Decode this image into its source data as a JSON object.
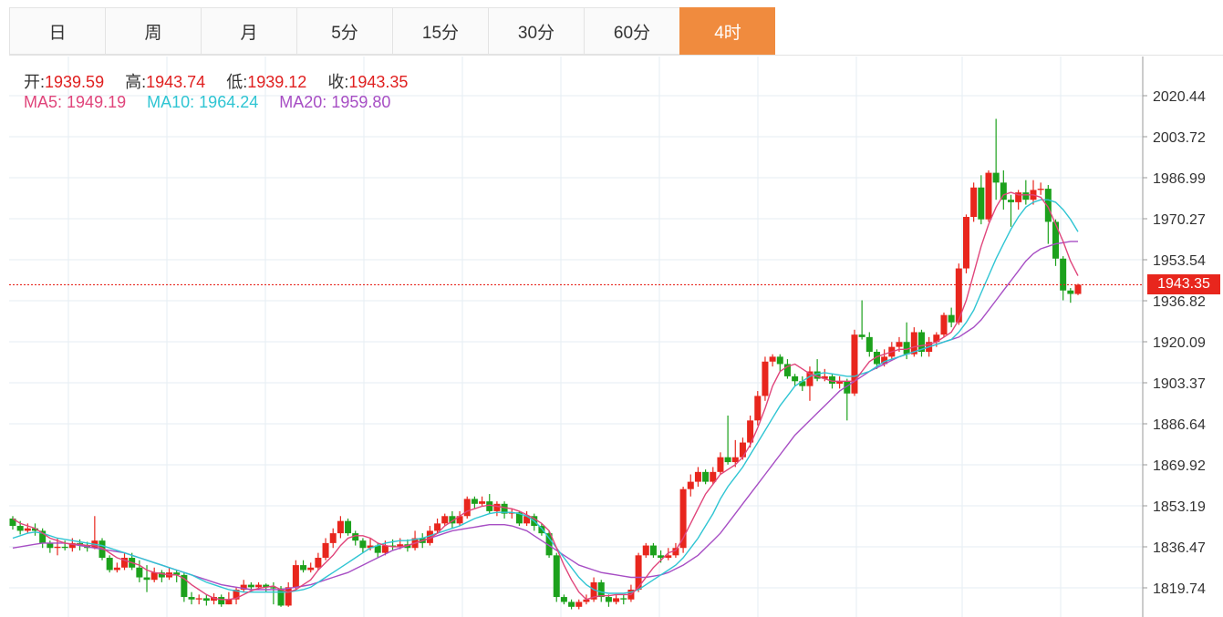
{
  "tabs": [
    {
      "label": "日",
      "active": false
    },
    {
      "label": "周",
      "active": false
    },
    {
      "label": "月",
      "active": false
    },
    {
      "label": "5分",
      "active": false
    },
    {
      "label": "15分",
      "active": false
    },
    {
      "label": "30分",
      "active": false
    },
    {
      "label": "60分",
      "active": false
    },
    {
      "label": "4时",
      "active": true
    }
  ],
  "ohlc": {
    "open_label": "开:",
    "open": "1939.59",
    "high_label": "高:",
    "high": "1943.74",
    "low_label": "低:",
    "low": "1939.12",
    "close_label": "收:",
    "close": "1943.35"
  },
  "ma": {
    "ma5_label": "MA5:",
    "ma5": "1949.19",
    "ma10_label": "MA10:",
    "ma10": "1964.24",
    "ma20_label": "MA20:",
    "ma20": "1959.80"
  },
  "current_price": "1943.35",
  "colors": {
    "up": "#e8261d",
    "down": "#1ca11c",
    "ma5": "#e0457b",
    "ma10": "#2fc5d3",
    "ma20": "#a74ec4",
    "active_tab": "#f08b3e"
  },
  "chart_data": {
    "type": "candlestick",
    "yticks": [
      "2020.44",
      "2003.72",
      "1986.99",
      "1970.27",
      "1953.54",
      "1936.82",
      "1920.09",
      "1903.37",
      "1886.64",
      "1869.92",
      "1853.19",
      "1836.47",
      "1819.74"
    ],
    "ylim": [
      1813.0,
      2035.0
    ],
    "last_price": 1943.35,
    "candles": [
      [
        1848.0,
        1845.0,
        1849.0,
        1843.5
      ],
      [
        1845.0,
        1843.0,
        1847.0,
        1841.5
      ],
      [
        1843.0,
        1844.0,
        1846.0,
        1842.0
      ],
      [
        1844.0,
        1843.0,
        1846.0,
        1841.0
      ],
      [
        1843.0,
        1838.0,
        1844.0,
        1836.0
      ],
      [
        1838.0,
        1836.0,
        1839.0,
        1834.0
      ],
      [
        1836.0,
        1836.5,
        1840.0,
        1833.0
      ],
      [
        1836.5,
        1836.0,
        1839.0,
        1835.0
      ],
      [
        1836.0,
        1838.0,
        1840.0,
        1834.5
      ],
      [
        1838.0,
        1837.0,
        1839.5,
        1835.0
      ],
      [
        1837.0,
        1836.0,
        1838.5,
        1834.5
      ],
      [
        1836.0,
        1839.0,
        1849.0,
        1835.5
      ],
      [
        1839.0,
        1832.0,
        1840.0,
        1831.0
      ],
      [
        1832.0,
        1827.0,
        1833.0,
        1826.0
      ],
      [
        1827.0,
        1828.0,
        1830.0,
        1826.0
      ],
      [
        1828.0,
        1832.0,
        1834.0,
        1827.0
      ],
      [
        1832.0,
        1828.0,
        1834.0,
        1827.0
      ],
      [
        1828.0,
        1824.0,
        1831.0,
        1822.0
      ],
      [
        1824.0,
        1823.0,
        1829.0,
        1818.0
      ],
      [
        1823.0,
        1826.0,
        1828.0,
        1822.0
      ],
      [
        1826.0,
        1824.0,
        1827.0,
        1822.0
      ],
      [
        1824.0,
        1826.0,
        1828.0,
        1823.0
      ],
      [
        1826.0,
        1825.0,
        1827.0,
        1822.0
      ],
      [
        1825.0,
        1816.0,
        1826.0,
        1814.0
      ],
      [
        1816.0,
        1815.0,
        1818.0,
        1813.0
      ],
      [
        1815.0,
        1815.5,
        1817.0,
        1813.0
      ],
      [
        1815.5,
        1814.5,
        1817.0,
        1812.5
      ],
      [
        1814.5,
        1816.0,
        1817.5,
        1813.0
      ],
      [
        1816.0,
        1813.0,
        1817.0,
        1812.0
      ],
      [
        1813.0,
        1815.0,
        1818.0,
        1813.0
      ],
      [
        1815.0,
        1819.0,
        1820.0,
        1813.0
      ],
      [
        1819.0,
        1821.0,
        1823.0,
        1818.0
      ],
      [
        1821.0,
        1820.0,
        1822.0,
        1818.0
      ],
      [
        1820.0,
        1821.0,
        1822.0,
        1819.0
      ],
      [
        1821.0,
        1820.0,
        1821.5,
        1818.0
      ],
      [
        1820.0,
        1819.5,
        1822.0,
        1813.0
      ],
      [
        1819.5,
        1812.5,
        1820.5,
        1812.0
      ],
      [
        1812.5,
        1820.0,
        1822.0,
        1812.0
      ],
      [
        1820.0,
        1829.0,
        1831.0,
        1819.0
      ],
      [
        1829.0,
        1827.0,
        1831.0,
        1826.0
      ],
      [
        1827.0,
        1828.0,
        1830.0,
        1826.0
      ],
      [
        1828.0,
        1832.0,
        1834.0,
        1827.0
      ],
      [
        1832.0,
        1838.0,
        1840.0,
        1831.0
      ],
      [
        1838.0,
        1842.0,
        1844.0,
        1836.0
      ],
      [
        1842.0,
        1847.0,
        1849.0,
        1840.0
      ],
      [
        1847.0,
        1842.0,
        1848.0,
        1841.0
      ],
      [
        1842.0,
        1839.0,
        1843.0,
        1837.0
      ],
      [
        1839.0,
        1836.0,
        1840.0,
        1834.0
      ],
      [
        1836.0,
        1837.0,
        1840.0,
        1835.0
      ],
      [
        1837.0,
        1834.0,
        1838.0,
        1832.0
      ],
      [
        1834.0,
        1837.0,
        1839.0,
        1833.0
      ],
      [
        1837.0,
        1836.5,
        1839.5,
        1835.0
      ],
      [
        1836.5,
        1837.5,
        1840.0,
        1835.5
      ],
      [
        1837.5,
        1836.0,
        1839.5,
        1834.5
      ],
      [
        1836.0,
        1840.0,
        1843.0,
        1835.0
      ],
      [
        1840.0,
        1838.0,
        1842.0,
        1836.0
      ],
      [
        1838.0,
        1843.0,
        1845.0,
        1837.0
      ],
      [
        1843.0,
        1846.0,
        1848.0,
        1842.0
      ],
      [
        1846.0,
        1849.0,
        1850.0,
        1845.0
      ],
      [
        1849.0,
        1846.0,
        1851.0,
        1844.0
      ],
      [
        1846.0,
        1849.0,
        1851.0,
        1845.0
      ],
      [
        1849.0,
        1856.0,
        1857.0,
        1848.0
      ],
      [
        1856.0,
        1854.0,
        1857.0,
        1852.0
      ],
      [
        1854.0,
        1855.0,
        1857.0,
        1853.0
      ],
      [
        1855.0,
        1851.0,
        1858.0,
        1850.0
      ],
      [
        1851.0,
        1854.0,
        1855.0,
        1849.0
      ],
      [
        1854.0,
        1850.0,
        1855.0,
        1848.0
      ],
      [
        1850.0,
        1850.5,
        1852.0,
        1848.0
      ],
      [
        1850.5,
        1846.0,
        1851.0,
        1845.0
      ],
      [
        1846.0,
        1849.0,
        1851.0,
        1845.0
      ],
      [
        1849.0,
        1845.0,
        1850.0,
        1843.0
      ],
      [
        1845.0,
        1842.0,
        1846.0,
        1841.0
      ],
      [
        1842.0,
        1833.0,
        1843.0,
        1832.0
      ],
      [
        1833.0,
        1816.0,
        1834.0,
        1814.0
      ],
      [
        1816.0,
        1814.0,
        1817.0,
        1813.0
      ],
      [
        1814.0,
        1812.0,
        1815.0,
        1811.0
      ],
      [
        1812.0,
        1814.0,
        1815.0,
        1811.0
      ],
      [
        1814.0,
        1815.0,
        1817.0,
        1813.0
      ],
      [
        1815.0,
        1822.0,
        1824.0,
        1814.0
      ],
      [
        1822.0,
        1816.0,
        1823.0,
        1814.0
      ],
      [
        1816.0,
        1814.0,
        1817.0,
        1812.0
      ],
      [
        1814.0,
        1815.5,
        1817.0,
        1813.0
      ],
      [
        1815.5,
        1815.0,
        1817.0,
        1813.0
      ],
      [
        1815.0,
        1819.0,
        1821.0,
        1814.0
      ],
      [
        1819.0,
        1833.0,
        1834.0,
        1818.0
      ],
      [
        1833.0,
        1837.0,
        1838.0,
        1832.0
      ],
      [
        1837.0,
        1833.0,
        1838.0,
        1832.0
      ],
      [
        1833.0,
        1832.0,
        1835.0,
        1830.0
      ],
      [
        1832.0,
        1833.0,
        1836.0,
        1831.0
      ],
      [
        1833.0,
        1836.0,
        1838.0,
        1832.0
      ],
      [
        1836.0,
        1860.0,
        1861.0,
        1834.0
      ],
      [
        1860.0,
        1863.0,
        1866.0,
        1857.0
      ],
      [
        1863.0,
        1867.0,
        1869.0,
        1861.0
      ],
      [
        1867.0,
        1863.0,
        1868.0,
        1862.0
      ],
      [
        1863.0,
        1867.0,
        1869.0,
        1862.0
      ],
      [
        1867.0,
        1873.0,
        1875.0,
        1866.0
      ],
      [
        1873.0,
        1871.0,
        1890.0,
        1870.0
      ],
      [
        1871.0,
        1873.0,
        1880.0,
        1869.0
      ],
      [
        1873.0,
        1879.0,
        1881.0,
        1872.0
      ],
      [
        1879.0,
        1888.0,
        1890.0,
        1877.0
      ],
      [
        1888.0,
        1898.0,
        1900.0,
        1886.0
      ],
      [
        1898.0,
        1912.0,
        1914.0,
        1896.0
      ],
      [
        1912.0,
        1914.0,
        1915.0,
        1910.0
      ],
      [
        1914.0,
        1911.0,
        1915.0,
        1908.0
      ],
      [
        1911.0,
        1906.0,
        1913.0,
        1905.0
      ],
      [
        1906.0,
        1904.0,
        1907.0,
        1902.0
      ],
      [
        1904.0,
        1902.0,
        1906.0,
        1900.0
      ],
      [
        1902.0,
        1908.0,
        1910.0,
        1896.0
      ],
      [
        1908.0,
        1905.0,
        1913.0,
        1904.0
      ],
      [
        1905.0,
        1906.0,
        1909.0,
        1904.0
      ],
      [
        1906.0,
        1903.0,
        1907.0,
        1901.0
      ],
      [
        1903.0,
        1904.0,
        1906.0,
        1901.0
      ],
      [
        1904.0,
        1899.0,
        1905.0,
        1888.0
      ],
      [
        1899.0,
        1923.0,
        1925.0,
        1898.0
      ],
      [
        1923.0,
        1922.0,
        1937.0,
        1921.0
      ],
      [
        1922.0,
        1916.0,
        1924.0,
        1914.0
      ],
      [
        1916.0,
        1911.0,
        1917.0,
        1909.0
      ],
      [
        1911.0,
        1914.0,
        1917.0,
        1910.0
      ],
      [
        1914.0,
        1918.0,
        1920.0,
        1913.0
      ],
      [
        1918.0,
        1920.0,
        1922.0,
        1916.0
      ],
      [
        1920.0,
        1915.0,
        1928.0,
        1913.0
      ],
      [
        1915.0,
        1924.0,
        1926.0,
        1914.0
      ],
      [
        1924.0,
        1916.0,
        1925.0,
        1914.0
      ],
      [
        1916.0,
        1920.0,
        1922.0,
        1914.0
      ],
      [
        1920.0,
        1923.0,
        1924.0,
        1918.0
      ],
      [
        1923.0,
        1931.0,
        1932.0,
        1922.0
      ],
      [
        1931.0,
        1928.0,
        1934.0,
        1926.0
      ],
      [
        1928.0,
        1950.0,
        1952.0,
        1927.0
      ],
      [
        1950.0,
        1971.0,
        1972.0,
        1948.0
      ],
      [
        1971.0,
        1983.0,
        1985.0,
        1969.0
      ],
      [
        1983.0,
        1970.0,
        1988.0,
        1968.0
      ],
      [
        1970.0,
        1989.0,
        1990.0,
        1969.0
      ],
      [
        1989.0,
        1985.0,
        2011.0,
        1978.0
      ],
      [
        1985.0,
        1978.0,
        1990.0,
        1974.0
      ],
      [
        1978.0,
        1977.0,
        1980.0,
        1967.0
      ],
      [
        1977.0,
        1981.0,
        1982.0,
        1974.0
      ],
      [
        1981.0,
        1978.0,
        1986.0,
        1976.0
      ],
      [
        1978.0,
        1982.0,
        1986.0,
        1976.0
      ],
      [
        1982.0,
        1982.5,
        1985.0,
        1980.0
      ],
      [
        1982.5,
        1969.0,
        1984.0,
        1960.0
      ],
      [
        1969.0,
        1954.0,
        1970.0,
        1951.0
      ],
      [
        1954.0,
        1941.0,
        1955.0,
        1937.0
      ],
      [
        1941.0,
        1939.6,
        1942.0,
        1936.0
      ],
      [
        1939.59,
        1943.35,
        1943.74,
        1939.12
      ]
    ],
    "ma5": [
      1848,
      1846,
      1845,
      1844,
      1842,
      1840,
      1839,
      1838,
      1837.5,
      1837.5,
      1837,
      1837,
      1836,
      1834,
      1832,
      1831,
      1830,
      1829,
      1827,
      1826,
      1825.5,
      1825,
      1825,
      1823.5,
      1821,
      1819,
      1817,
      1815.5,
      1815,
      1815,
      1815.5,
      1817,
      1818.5,
      1819.5,
      1820,
      1820.5,
      1819,
      1818,
      1819,
      1821,
      1823,
      1827,
      1830,
      1833,
      1837,
      1840,
      1841,
      1841,
      1840,
      1838,
      1837,
      1836.5,
      1836.5,
      1837,
      1838,
      1839,
      1840,
      1842,
      1845,
      1847,
      1849,
      1851,
      1852,
      1853,
      1853.5,
      1853,
      1852.5,
      1852,
      1851,
      1849.5,
      1848,
      1846,
      1843,
      1836,
      1829,
      1823,
      1818,
      1815,
      1816,
      1816.5,
      1816.5,
      1817,
      1817,
      1817,
      1820,
      1824,
      1828,
      1831,
      1834,
      1835,
      1840,
      1846,
      1852,
      1858,
      1862,
      1866,
      1868,
      1870,
      1873,
      1878,
      1885,
      1893,
      1902,
      1908,
      1910,
      1911,
      1909,
      1907,
      1906,
      1905,
      1904,
      1904,
      1904,
      1904,
      1908,
      1912,
      1914,
      1915,
      1916,
      1917,
      1917,
      1918,
      1918.5,
      1919,
      1920,
      1922,
      1924,
      1929,
      1937,
      1948,
      1959,
      1968,
      1975,
      1980,
      1981,
      1980,
      1980,
      1980,
      1979,
      1975,
      1968,
      1961,
      1953,
      1947
    ],
    "ma10": [
      1840,
      1841,
      1842,
      1842.5,
      1842,
      1841,
      1840,
      1839.5,
      1839,
      1838.5,
      1838,
      1837.5,
      1837,
      1836,
      1835,
      1834,
      1833,
      1832,
      1831,
      1830,
      1829,
      1828,
      1827,
      1826,
      1825,
      1823.5,
      1822,
      1821,
      1820,
      1819,
      1818.5,
      1818,
      1818,
      1818,
      1818,
      1818,
      1818,
      1818,
      1818.5,
      1819,
      1820,
      1822,
      1824,
      1826,
      1828,
      1830,
      1832,
      1834,
      1836,
      1837,
      1838,
      1838.5,
      1839,
      1839,
      1839.5,
      1840,
      1841,
      1842,
      1843,
      1844,
      1845,
      1846.5,
      1848,
      1849,
      1850,
      1850.5,
      1850.5,
      1850.5,
      1850,
      1849,
      1847,
      1844,
      1840,
      1836,
      1832,
      1828,
      1824,
      1821,
      1819,
      1818,
      1817.5,
      1817.5,
      1817.5,
      1818,
      1819,
      1821,
      1823,
      1825,
      1827,
      1829,
      1832,
      1836,
      1840,
      1845,
      1850,
      1856,
      1861,
      1865,
      1869,
      1874,
      1879,
      1884,
      1889,
      1894,
      1898,
      1902,
      1904,
      1906,
      1907,
      1907.5,
      1907,
      1906.5,
      1906,
      1906,
      1907,
      1908,
      1910,
      1912,
      1913,
      1914,
      1915,
      1916,
      1917,
      1918,
      1919,
      1920,
      1921,
      1924,
      1928,
      1933,
      1940,
      1947,
      1954,
      1960,
      1966,
      1971,
      1975,
      1977,
      1978,
      1978,
      1977,
      1974,
      1970,
      1965
    ],
    "ma20": [
      1836,
      1836.5,
      1837,
      1837.5,
      1838,
      1838,
      1838,
      1838,
      1837.5,
      1837,
      1836.5,
      1836,
      1835.5,
      1835,
      1834.5,
      1834,
      1833,
      1832,
      1831,
      1830,
      1829,
      1828,
      1827,
      1826,
      1825,
      1824,
      1823,
      1822,
      1821,
      1820.5,
      1820,
      1819.5,
      1819,
      1819,
      1819,
      1819,
      1819,
      1819.5,
      1820,
      1820.5,
      1821,
      1822,
      1823,
      1824,
      1825,
      1826,
      1827.5,
      1829,
      1830.5,
      1832,
      1833.5,
      1835,
      1836,
      1837,
      1838,
      1839,
      1840,
      1841,
      1842,
      1843,
      1843.5,
      1844,
      1844.5,
      1845,
      1845.5,
      1845.5,
      1845.5,
      1845,
      1844,
      1843,
      1841,
      1839,
      1837,
      1835,
      1833,
      1831,
      1829,
      1828,
      1827,
      1826,
      1825.5,
      1825,
      1824.5,
      1824,
      1824,
      1824,
      1824.5,
      1825,
      1826,
      1827.5,
      1829,
      1831,
      1833,
      1836,
      1839,
      1842,
      1846,
      1850,
      1854,
      1858,
      1862,
      1866,
      1870,
      1874,
      1878,
      1882,
      1885,
      1888,
      1891,
      1894,
      1897,
      1900,
      1902,
      1904,
      1906,
      1908,
      1909.5,
      1911,
      1912.5,
      1914,
      1915,
      1916,
      1917,
      1918,
      1919,
      1920,
      1921,
      1922,
      1924,
      1926,
      1929,
      1933,
      1937,
      1941,
      1945,
      1949,
      1953,
      1956,
      1958,
      1959,
      1960,
      1960.5,
      1961,
      1961
    ]
  }
}
